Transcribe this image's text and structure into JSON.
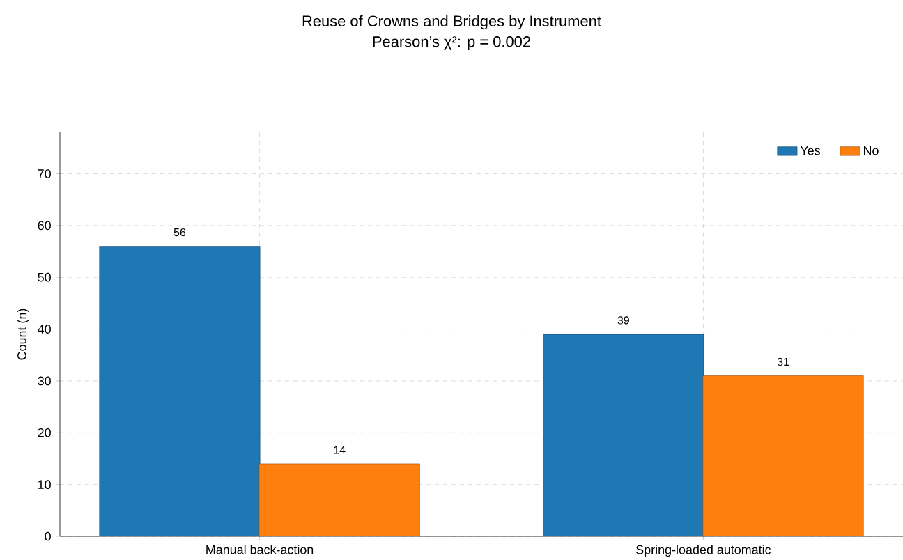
{
  "chart_data": {
    "type": "bar",
    "title": "Reuse of Crowns and Bridges by Instrument",
    "subtitle": "Pearson’s χ²: p = 0.002",
    "ylabel": "Count (n)",
    "categories": [
      "Manual back-action",
      "Spring-loaded automatic"
    ],
    "series": [
      {
        "name": "Yes",
        "color": "#1f77b4",
        "values": [
          56,
          39
        ]
      },
      {
        "name": "No",
        "color": "#ff7f0e",
        "values": [
          14,
          31
        ]
      }
    ],
    "ylim": [
      0,
      78
    ],
    "yticks": [
      0,
      10,
      20,
      30,
      40,
      50,
      60,
      70
    ],
    "grid": true,
    "legend": "top right",
    "data_labels": true
  }
}
